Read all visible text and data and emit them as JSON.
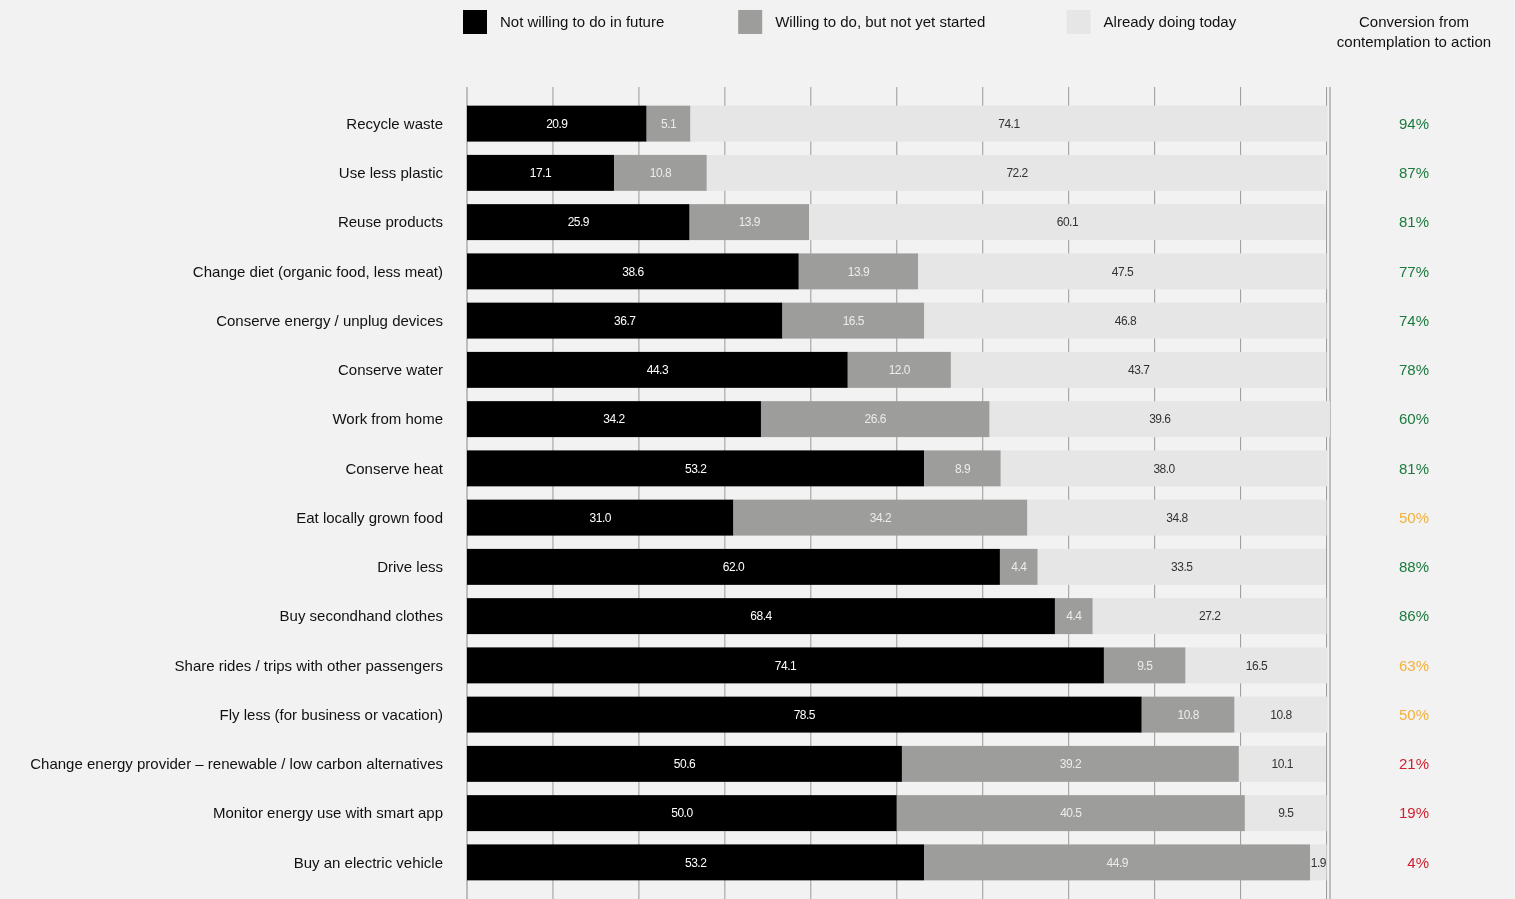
{
  "chart_data": {
    "type": "bar",
    "orientation": "horizontal",
    "stacked": true,
    "legend": "top",
    "grid": "x",
    "categories": [
      "Recycle waste",
      "Use less plastic",
      "Reuse products",
      "Change diet (organic food, less meat)",
      "Conserve energy / unplug devices",
      "Conserve water",
      "Work from home",
      "Conserve heat",
      "Eat locally grown food",
      "Drive less",
      "Buy secondhand clothes",
      "Share rides / trips with other passengers",
      "Fly less (for business or vacation)",
      "Change energy provider – renewable / low carbon alternatives",
      "Monitor energy use with smart app",
      "Buy an electric vehicle"
    ],
    "series": [
      {
        "name": "Not willing to do in future",
        "color": "#000000",
        "values": [
          20.9,
          17.1,
          25.9,
          38.6,
          36.7,
          44.3,
          34.2,
          53.2,
          31.0,
          62.0,
          68.4,
          74.1,
          78.5,
          50.6,
          50.0,
          53.2
        ],
        "value_labels": [
          "20.9",
          "17.1",
          "25.9",
          "38.6",
          "36.7",
          "44.3",
          "34.2",
          "53.2",
          "31.0",
          "62.0",
          "68.4",
          "74.1",
          "78.5",
          "50.6",
          "50.0",
          "53.2"
        ]
      },
      {
        "name": "Willing to do, but not yet started",
        "color": "#9d9d9c",
        "values": [
          5.1,
          10.8,
          13.9,
          13.9,
          16.5,
          12.0,
          26.6,
          8.9,
          34.2,
          4.4,
          4.4,
          9.5,
          10.8,
          39.2,
          40.5,
          44.9
        ],
        "value_labels": [
          "5.1",
          "10.8",
          "13.9",
          "13.9",
          "16.5",
          "12.0",
          "26.6",
          "8.9",
          "34.2",
          "4.4",
          "4.4",
          "9.5",
          "10.8",
          "39.2",
          "40.5",
          "44.9"
        ]
      },
      {
        "name": "Already doing today",
        "color": "#e6e6e6",
        "values": [
          74.1,
          72.2,
          60.1,
          47.5,
          46.8,
          43.7,
          39.6,
          38.0,
          34.8,
          33.5,
          27.2,
          16.5,
          10.8,
          10.1,
          9.5,
          1.9
        ],
        "value_labels": [
          "74.1",
          "72.2",
          "60.1",
          "47.5",
          "46.8",
          "43.7",
          "39.6",
          "38.0",
          "34.8",
          "33.5",
          "27.2",
          "16.5",
          "10.8",
          "10.1",
          "9.5",
          "1.9"
        ]
      }
    ],
    "xlim": [
      0,
      100.4
    ],
    "xticks": [
      {
        "value": 10,
        "label": null
      },
      {
        "value": 20,
        "label": null
      },
      {
        "value": 30,
        "label": null
      },
      {
        "value": 40,
        "label": null
      },
      {
        "value": 50,
        "label": null
      },
      {
        "value": 60,
        "label": null
      },
      {
        "value": 70,
        "label": null
      },
      {
        "value": 80,
        "label": null
      },
      {
        "value": 90,
        "label": null
      },
      {
        "value": 100,
        "label": null
      }
    ],
    "annotations": [
      "Conversion from contemplation to action",
      "94%",
      "87%",
      "81%",
      "77%",
      "74%",
      "78%",
      "60%",
      "81%",
      "50%",
      "88%",
      "86%",
      "63%",
      "50%",
      "21%",
      "19%",
      "4%"
    ]
  }
}
